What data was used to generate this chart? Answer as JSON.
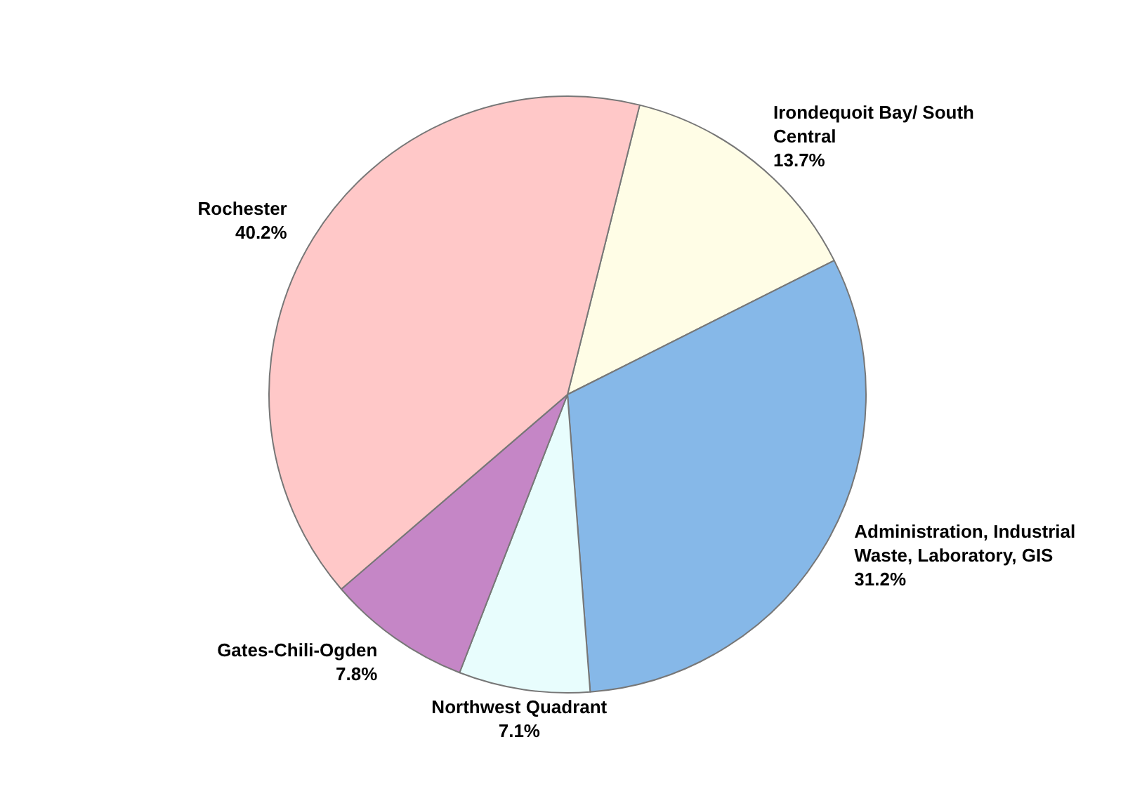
{
  "chart_data": {
    "type": "pie",
    "categories": [
      "Irondequoit Bay/ South Central",
      "Administration, Industrial Waste, Laboratory, GIS",
      "Northwest Quadrant",
      "Gates-Chili-Ogden",
      "Rochester"
    ],
    "values": [
      13.7,
      31.2,
      7.1,
      7.8,
      40.2
    ],
    "value_labels": [
      "13.7%",
      "31.2%",
      "7.1%",
      "7.8%",
      "40.2%"
    ],
    "colors": [
      "#fffde6",
      "#86b8e8",
      "#e8fdfd",
      "#c586c6",
      "#ffc8c8"
    ],
    "legend": false
  }
}
